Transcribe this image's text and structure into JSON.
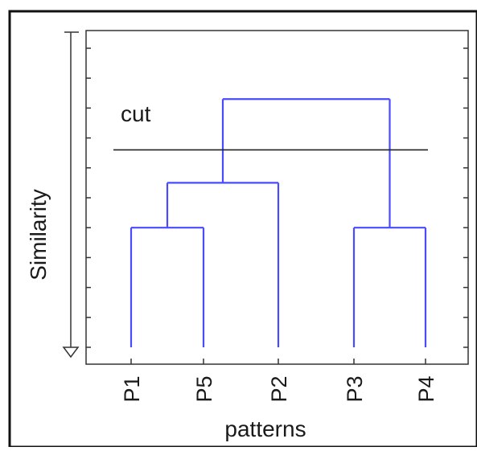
{
  "labels": {
    "y_axis": "Similarity",
    "x_axis": "patterns",
    "cut": "cut"
  },
  "leaves": [
    "P1",
    "P5",
    "P2",
    "P3",
    "P4"
  ],
  "dendrogram": {
    "description": "Hierarchical clustering tree; merge heights in similarity ticks (0 = bottom, 10 = top)",
    "merges": [
      {
        "left": "P1",
        "right": "P5",
        "height": 4
      },
      {
        "left": "P1+P5",
        "right": "P2",
        "height": 5.5
      },
      {
        "left": "P3",
        "right": "P4",
        "height": 4
      },
      {
        "left": "P1+P5+P2",
        "right": "P3+P4",
        "height": 8.3
      }
    ],
    "cut_height": 6.6,
    "ticks": 10
  },
  "colors": {
    "branch": "#4a4aff",
    "frame": "#222222",
    "cut_line": "#222222"
  }
}
